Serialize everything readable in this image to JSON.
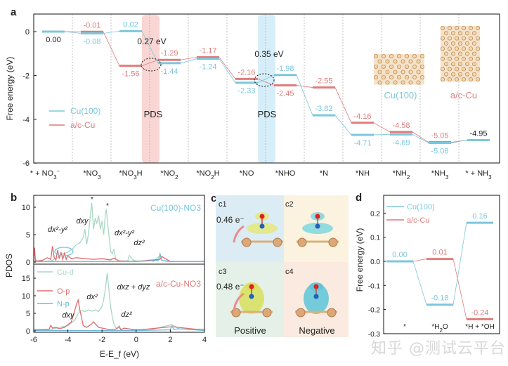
{
  "colors": {
    "cu100": "#7cc7dc",
    "ac_cu": "#e07c7c",
    "pds_pink": "#f9d6d3",
    "pds_blue": "#d6eef9",
    "o_p": "#e06b6b",
    "n_p": "#6fb8dc",
    "cu_d": "#a9d8c4"
  },
  "chart_data": [
    {
      "panel": "a",
      "type": "energy-level-diagram",
      "ylabel": "Free energy (eV)",
      "ylim": [
        -6,
        0.6
      ],
      "yticks": [
        "0",
        "-2",
        "-4",
        "-6"
      ],
      "categories": [
        "* + NO3⁻",
        "*NO3",
        "*NO3H",
        "*NO2",
        "*NO2H",
        "*NO",
        "*NHO",
        "*N",
        "*NH",
        "*NH2",
        "*NH3",
        "* + NH3"
      ],
      "series": [
        {
          "name": "Cu(100)",
          "values": [
            0.0,
            -0.08,
            0.02,
            -1.44,
            -1.24,
            -2.33,
            -1.98,
            -3.82,
            -4.71,
            -4.69,
            -5.08,
            -4.95
          ],
          "labels": [
            "0.00",
            "-0.08",
            "0.02",
            "-1.44",
            "-1.24",
            "-2.33",
            "-1.98",
            "-3.82",
            "-4.71",
            "-4.69",
            "-5.08",
            "-4.95"
          ]
        },
        {
          "name": "a/c-Cu",
          "values": [
            0.0,
            -0.01,
            -1.56,
            -1.29,
            -1.17,
            -2.16,
            -2.45,
            -2.55,
            -4.16,
            -4.58,
            -5.05,
            -4.95
          ],
          "labels": [
            "0.00",
            "-0.01",
            "-1.56",
            "-1.29",
            "-1.17",
            "-2.16",
            "-2.45",
            "-2.55",
            "-4.16",
            "-4.58",
            "-5.05",
            "-4.95"
          ]
        }
      ],
      "annotations": {
        "pds1_energy": "0.27 eV",
        "pds2_energy": "0.35 eV",
        "pds_label": "PDS",
        "structure1": "Cu(100)",
        "structure2": "a/c-Cu"
      },
      "legend": "left-middle",
      "grid": "vertical dashed separators"
    },
    {
      "panel": "b",
      "type": "line",
      "xlabel": "E-E_f (eV)",
      "ylabel": "PDOS",
      "xlim": [
        -6,
        4
      ],
      "xticks": [
        "-6",
        "-4",
        "-2",
        "0",
        "2",
        "4"
      ],
      "subplots": [
        {
          "title": "Cu(100)-NO3",
          "ylim": [
            0,
            12
          ],
          "yticks": [
            "0",
            "5",
            "10"
          ],
          "series": [
            {
              "name": "Cu-d",
              "x": [
                -6,
                -5,
                -4.6,
                -4.3,
                -4,
                -3.7,
                -3.5,
                -3.3,
                -3.1,
                -3.0,
                -2.9,
                -2.8,
                -2.7,
                -2.6,
                -2.5,
                -2.4,
                -2.3,
                -2.2,
                -2.1,
                -2.0,
                -1.9,
                -1.8,
                -1.75,
                -1.7,
                -1.6,
                -1.5,
                -1.4,
                -1.3,
                -1.2,
                -1.0,
                -0.5,
                -0.4,
                -0.2,
                0,
                0.5,
                0.8,
                1.0,
                1.4,
                1.5,
                1.8,
                2.5,
                3,
                4
              ],
              "y": [
                0,
                0.2,
                0.8,
                1.5,
                1.8,
                2.5,
                3.2,
                3.5,
                4.5,
                6,
                3.2,
                5,
                8,
                10.8,
                6,
                8,
                7,
                8.5,
                6,
                7.5,
                5,
                9,
                9.6,
                8,
                5,
                2,
                1.5,
                2.4,
                0.5,
                0.2,
                0.2,
                1.2,
                0.4,
                0.2,
                0.2,
                0.4,
                0.1,
                1.2,
                0.3,
                0.1,
                0.1,
                0.1,
                0.1
              ]
            },
            {
              "name": "O-p",
              "x": [
                -6,
                -5.95,
                -5.9,
                -5.8,
                -5.5,
                -5.2,
                -5.0,
                -4.9,
                -4.8,
                -4.7,
                -4.6,
                -4.5,
                -4.4,
                -4.3,
                -4.2,
                -4.1,
                -4.0,
                -3.8,
                -3.5,
                -3.0,
                -2.5,
                -2.0,
                -1.5,
                -1.3,
                -1.0,
                0,
                1.4,
                1.5,
                2,
                4
              ],
              "y": [
                0.3,
                2.6,
                0.3,
                0.2,
                0.3,
                0.8,
                0.5,
                2.9,
                0.8,
                0.4,
                2.2,
                0.6,
                1.8,
                0.5,
                1.6,
                0.5,
                1.2,
                0.6,
                0.8,
                0.6,
                0.5,
                0.6,
                0.4,
                0.7,
                0.2,
                0.1,
                0.5,
                1.0,
                0.1,
                0.1
              ]
            },
            {
              "name": "N-p",
              "x": [
                -6,
                -2,
                0,
                1.3,
                1.4,
                1.5,
                2,
                4
              ],
              "y": [
                0.1,
                0.1,
                0.1,
                0.3,
                1.5,
                0.3,
                0.1,
                0.1
              ]
            }
          ],
          "annotations": [
            "d_xy",
            "d_x2-y2",
            "d_x2-y2",
            "d_z2",
            "*",
            "*"
          ]
        },
        {
          "title": "a/c-Cu-NO3",
          "ylim": [
            0,
            18
          ],
          "yticks": [
            "0",
            "5",
            "10",
            "15"
          ],
          "series": [
            {
              "name": "Cu-d",
              "x": [
                -6,
                -5,
                -4.5,
                -4,
                -3.6,
                -3.4,
                -3.2,
                -3.0,
                -2.8,
                -2.6,
                -2.4,
                -2.2,
                -2.0,
                -1.9,
                -1.8,
                -1.7,
                -1.6,
                -1.5,
                -1.4,
                -1.3,
                -1.2,
                -1.1,
                -1.0,
                -0.9,
                -0.5,
                0,
                1,
                2.1,
                2.5,
                3,
                4
              ],
              "y": [
                0.3,
                0.4,
                1,
                1.5,
                3,
                5,
                5.8,
                5.5,
                6,
                5.6,
                6,
                5.5,
                7,
                9,
                12,
                16.5,
                12,
                7,
                4,
                2,
                1,
                0.5,
                1.5,
                0.5,
                0.6,
                0.4,
                0.5,
                1.8,
                0.6,
                0.5,
                0.5
              ]
            },
            {
              "name": "O-p",
              "x": [
                -6,
                -5.1,
                -5.0,
                -4.9,
                -4.7,
                -4.5,
                -4.2,
                -3.8,
                -3.5,
                -3.4,
                -3.3,
                -3.1,
                -2.9,
                -2.6,
                -2.5,
                -2.4,
                -2.2,
                -2.0,
                -1.5,
                -1.2,
                -1.0,
                -0.9,
                -0.7,
                0,
                2.1,
                4
              ],
              "y": [
                0.3,
                0.5,
                1.6,
                0.8,
                1.0,
                0.6,
                1.0,
                2.5,
                7.5,
                8.8,
                6,
                1.5,
                1.0,
                2.0,
                2.6,
                2.0,
                1.0,
                0.8,
                0.3,
                0.5,
                1.2,
                0.3,
                0.8,
                0.2,
                1.2,
                0.2
              ]
            },
            {
              "name": "N-p",
              "x": [
                -6,
                -2,
                0,
                2,
                2.1,
                2.2,
                2.5,
                4
              ],
              "y": [
                0.1,
                0.1,
                0.1,
                0.3,
                1.5,
                0.4,
                0.6,
                0.1
              ]
            }
          ],
          "annotations": [
            "d_xy",
            "d_x2",
            "d_xz + d_yz",
            "d_z2"
          ]
        }
      ],
      "legend": [
        "Cu-d",
        "O-p",
        "N-p"
      ]
    },
    {
      "panel": "d",
      "type": "energy-level-diagram",
      "ylabel": "Free energy (eV)",
      "ylim": [
        -0.3,
        0.26
      ],
      "yticks": [
        "0.2",
        "0.1",
        "0.0",
        "-0.1",
        "-0.2",
        "-0.3"
      ],
      "categories": [
        "*",
        "*H2O",
        "*H + *OH"
      ],
      "series": [
        {
          "name": "Cu(100)",
          "values": [
            0.0,
            -0.18,
            0.16
          ],
          "labels": [
            "0.00",
            "-0.18",
            "0.16"
          ]
        },
        {
          "name": "a/c-Cu",
          "values": [
            0.0,
            0.01,
            -0.24
          ],
          "labels": [
            "0.00",
            "0.01",
            "-0.24"
          ]
        }
      ],
      "legend": "top-left"
    }
  ],
  "panel_labels": {
    "a": "a",
    "b": "b",
    "c": "c",
    "d": "d"
  },
  "panel_c": {
    "c1": "c1",
    "c2": "c2",
    "c3": "c3",
    "c4": "c4",
    "charge1": "0.46 e⁻",
    "charge2": "0.48 e⁻",
    "positive": "Positive",
    "negative": "Negative"
  },
  "watermark": "知乎 @测试云平台"
}
